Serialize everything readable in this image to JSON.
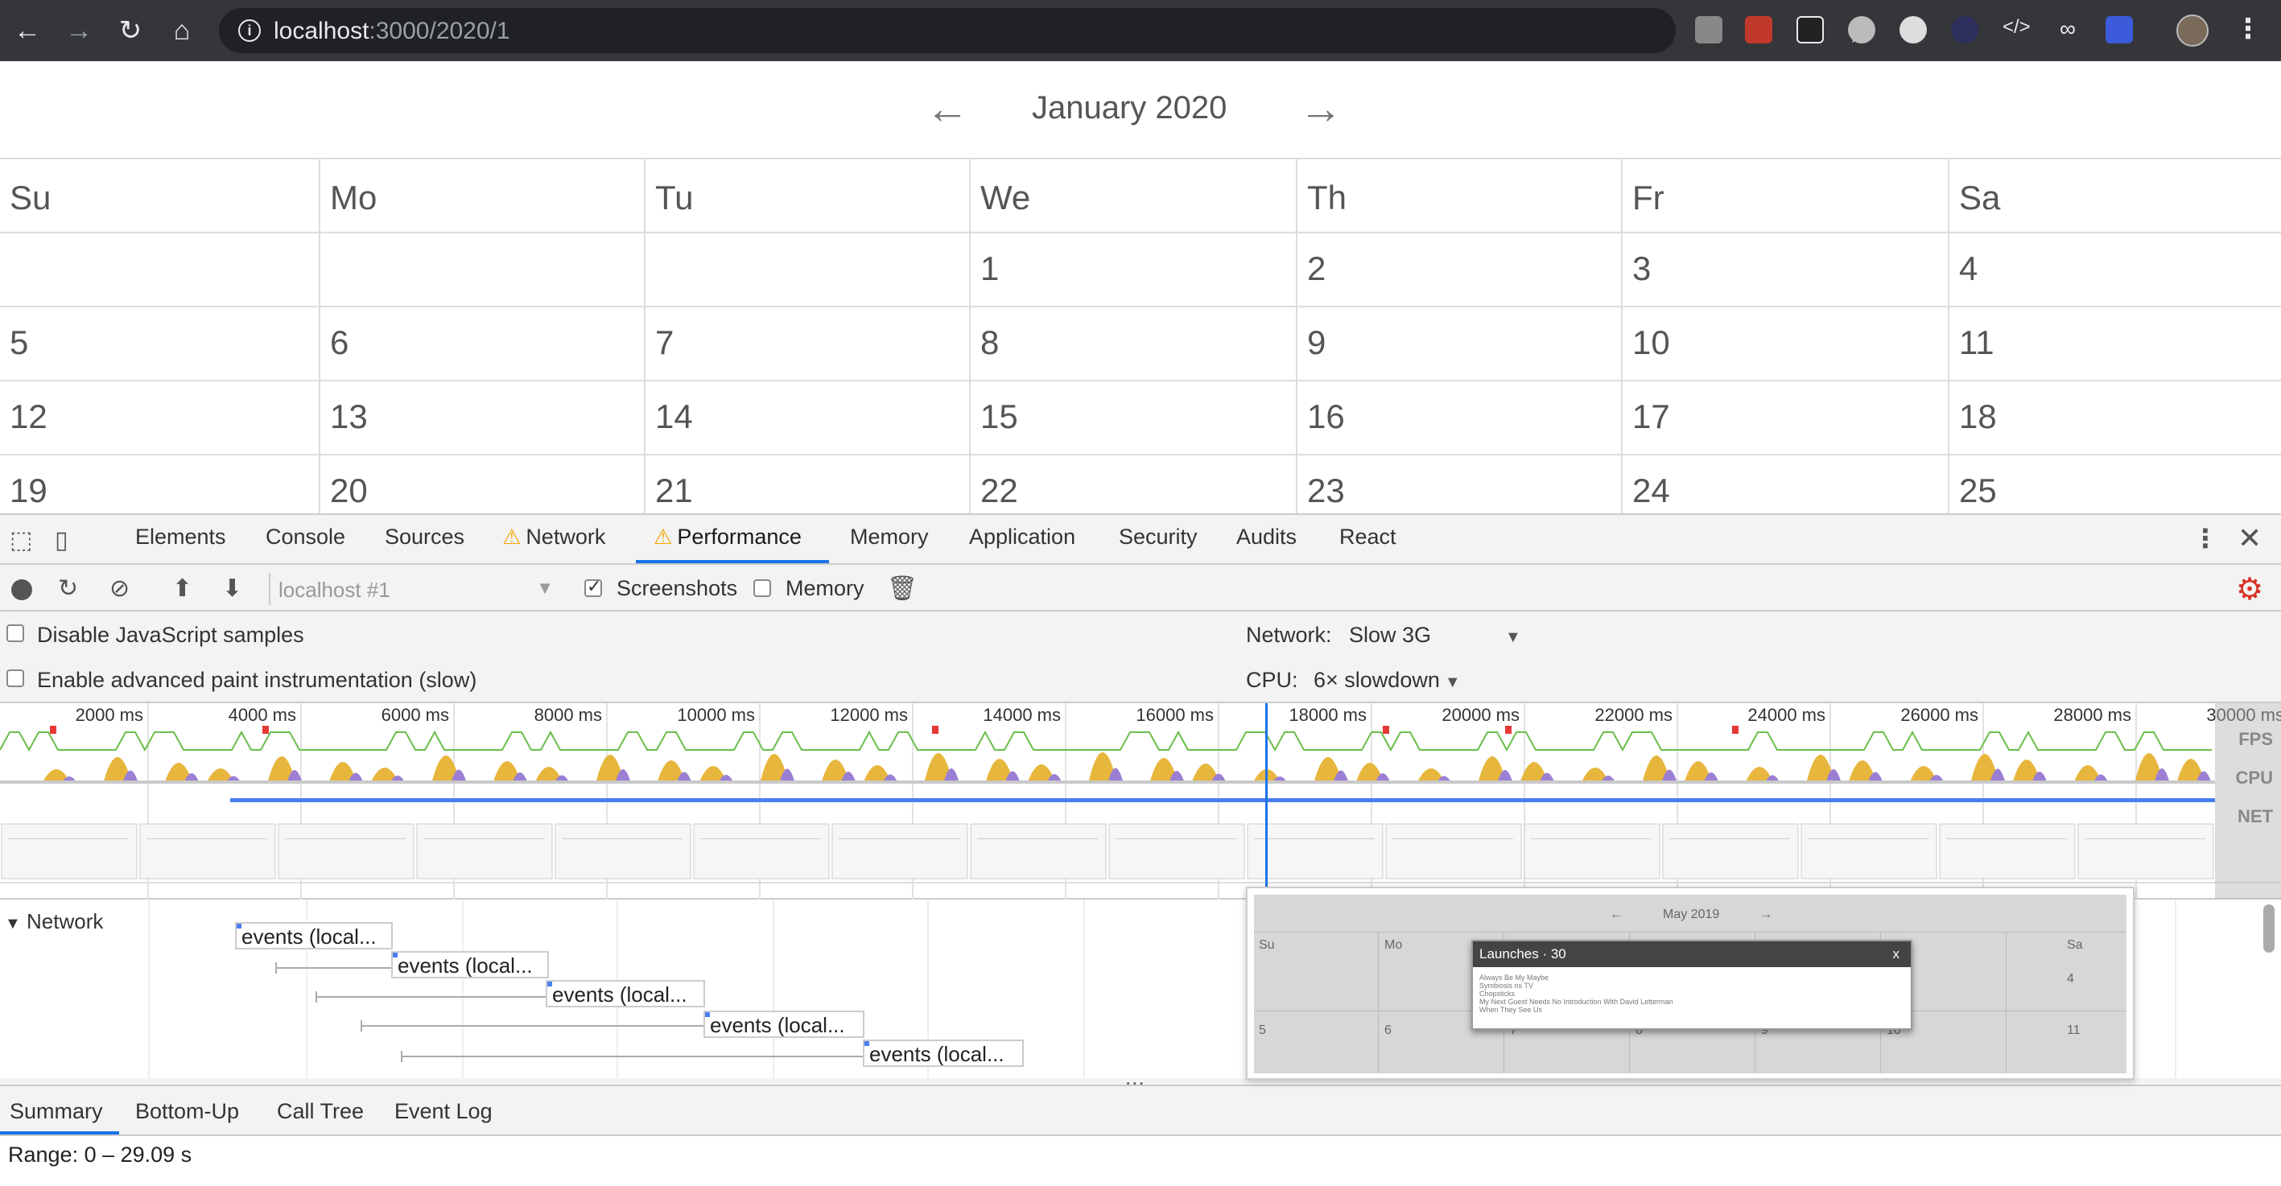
{
  "browser": {
    "url_host": "localhost",
    "url_path": ":3000/2020/1"
  },
  "calendar": {
    "prev_arrow": "←",
    "title": "January 2020",
    "next_arrow": "→",
    "weekdays": [
      "Su",
      "Mo",
      "Tu",
      "We",
      "Th",
      "Fr",
      "Sa"
    ],
    "weeks": [
      [
        "",
        "",
        "",
        "1",
        "2",
        "3",
        "4"
      ],
      [
        "5",
        "6",
        "7",
        "8",
        "9",
        "10",
        "11"
      ],
      [
        "12",
        "13",
        "14",
        "15",
        "16",
        "17",
        "18"
      ],
      [
        "19",
        "20",
        "21",
        "22",
        "23",
        "24",
        "25"
      ]
    ]
  },
  "devtools": {
    "tabs": [
      "Elements",
      "Console",
      "Sources",
      "Network",
      "Performance",
      "Memory",
      "Application",
      "Security",
      "Audits",
      "React"
    ],
    "active_tab": "Performance",
    "toolbar": {
      "profile_placeholder": "localhost #1",
      "screenshots_label": "Screenshots",
      "screenshots_checked": true,
      "memory_label": "Memory",
      "memory_checked": false
    },
    "settings": {
      "disable_js_samples": "Disable JavaScript samples",
      "enable_paint": "Enable advanced paint instrumentation (slow)",
      "network_label": "Network:",
      "network_value": "Slow 3G",
      "cpu_label": "CPU:",
      "cpu_value": "6× slowdown"
    },
    "overview": {
      "ticks": [
        "2000 ms",
        "4000 ms",
        "6000 ms",
        "8000 ms",
        "10000 ms",
        "12000 ms",
        "14000 ms",
        "16000 ms",
        "18000 ms",
        "20000 ms",
        "22000 ms",
        "24000 ms",
        "26000 ms",
        "28000 ms",
        "30000 ms"
      ],
      "lane_fps": "FPS",
      "lane_cpu": "CPU",
      "lane_net": "NET"
    },
    "network_track": {
      "label": "Network",
      "requests": [
        "events (local...",
        "events (local...",
        "events (local...",
        "events (local...",
        "events (local..."
      ]
    },
    "screenshot_popup": {
      "month": "May 2019",
      "arrows": [
        "←",
        "→"
      ],
      "days_header": [
        "Su",
        "Mo",
        "Sa"
      ],
      "modal_title": "Launches · 30",
      "modal_close": "x",
      "modal_lines": [
        "Always Be My Maybe",
        "Symbiosis ns TV",
        "Chopsticks",
        "My Next Guest Needs No Introduction With David Letterman",
        "When They See Us"
      ],
      "row_nums": [
        "4",
        "5",
        "6",
        "7",
        "8",
        "9",
        "10",
        "11"
      ]
    },
    "splitter_dots": "...",
    "bottom_tabs": [
      "Summary",
      "Bottom-Up",
      "Call Tree",
      "Event Log"
    ],
    "range": "Range: 0 – 29.09 s"
  }
}
